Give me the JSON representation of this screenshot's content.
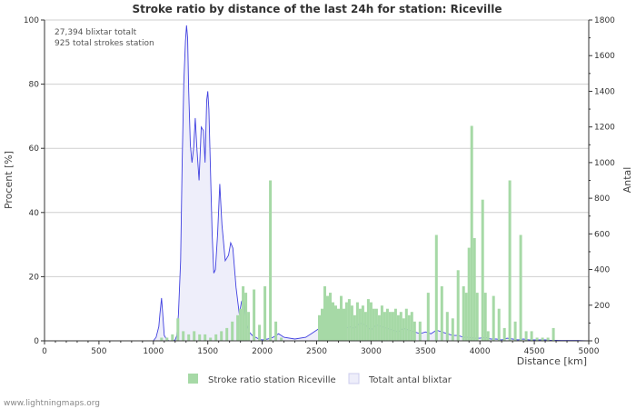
{
  "chart_data": {
    "type": "bar",
    "title": "Stroke ratio by distance of the last 24h for station: Riceville",
    "annotations": [
      "27,394 blixtar totalt",
      "925 total strokes station"
    ],
    "xlabel": "Distance   [km]",
    "ylabel_left": "Procent   [%]",
    "ylabel_right": "Antal",
    "xlim": [
      0,
      5000
    ],
    "ylim_left": [
      0,
      100
    ],
    "ylim_right": [
      0,
      1800
    ],
    "x_ticks": [
      0,
      500,
      1000,
      1500,
      2000,
      2500,
      3000,
      3500,
      4000,
      4500,
      5000
    ],
    "y_left_ticks": [
      0,
      20,
      40,
      60,
      80,
      100
    ],
    "y_right_ticks": [
      0,
      200,
      400,
      600,
      800,
      1000,
      1200,
      1400,
      1600,
      1800
    ],
    "grid": true,
    "legend_position": "bottom",
    "series": [
      {
        "name": "Stroke ratio station Riceville",
        "kind": "bar",
        "axis": "left",
        "color": "#a6d9a6",
        "x": [
          1075,
          1125,
          1175,
          1225,
          1275,
          1325,
          1375,
          1425,
          1475,
          1525,
          1575,
          1625,
          1675,
          1725,
          1775,
          1800,
          1825,
          1850,
          1875,
          1925,
          1975,
          2025,
          2075,
          2125,
          2175,
          2525,
          2550,
          2575,
          2600,
          2625,
          2650,
          2675,
          2700,
          2725,
          2750,
          2775,
          2800,
          2825,
          2850,
          2875,
          2900,
          2925,
          2950,
          2975,
          3000,
          3025,
          3050,
          3075,
          3100,
          3125,
          3150,
          3175,
          3200,
          3225,
          3250,
          3275,
          3300,
          3325,
          3350,
          3375,
          3400,
          3450,
          3525,
          3600,
          3650,
          3700,
          3750,
          3800,
          3850,
          3875,
          3900,
          3925,
          3950,
          3975,
          4025,
          4050,
          4075,
          4125,
          4175,
          4225,
          4275,
          4325,
          4375,
          4425,
          4475,
          4525,
          4575,
          4625,
          4675
        ],
        "values": [
          1,
          1,
          2,
          7,
          3,
          2,
          3,
          2,
          2,
          1,
          2,
          3,
          4,
          6,
          8,
          10,
          17,
          15,
          9,
          16,
          5,
          17,
          50,
          6,
          1,
          8,
          10,
          17,
          14,
          15,
          12,
          11,
          10,
          14,
          10,
          12,
          13,
          11,
          8,
          12,
          10,
          11,
          9,
          13,
          12,
          10,
          10,
          8,
          11,
          9,
          10,
          9,
          9,
          10,
          8,
          9,
          7,
          10,
          8,
          9,
          6,
          6,
          15,
          33,
          17,
          9,
          7,
          22,
          17,
          15,
          29,
          67,
          32,
          15,
          44,
          15,
          3,
          14,
          10,
          4,
          50,
          6,
          33,
          3,
          3,
          1,
          1,
          1,
          4
        ]
      },
      {
        "name": "Totalt antal blixtar",
        "kind": "area",
        "axis": "right",
        "color": "#4040e0",
        "fill": "#eeeefa",
        "x": [
          1000,
          1025,
          1050,
          1060,
          1075,
          1085,
          1100,
          1125,
          1150,
          1175,
          1200,
          1215,
          1230,
          1250,
          1265,
          1280,
          1295,
          1305,
          1315,
          1325,
          1340,
          1355,
          1370,
          1385,
          1400,
          1420,
          1440,
          1460,
          1475,
          1490,
          1500,
          1510,
          1525,
          1540,
          1555,
          1570,
          1590,
          1610,
          1630,
          1660,
          1690,
          1710,
          1730,
          1760,
          1790,
          1810,
          1830,
          1850,
          1880,
          1910,
          1940,
          1970,
          2000,
          2050,
          2100,
          2150,
          2200,
          2300,
          2400,
          2450,
          2500,
          2550,
          2600,
          2650,
          2700,
          2750,
          2800,
          2850,
          2900,
          2950,
          3000,
          3050,
          3100,
          3150,
          3200,
          3250,
          3300,
          3350,
          3400,
          3450,
          3500,
          3550,
          3600,
          3650,
          3700,
          3750,
          3800,
          3850,
          3900,
          3950,
          4000,
          4050,
          4100,
          4150,
          4200,
          4250,
          4300,
          4350,
          4400,
          4450,
          4500,
          4550,
          4600,
          4650,
          4700,
          4750,
          4800,
          4850,
          4900,
          4950,
          5000
        ],
        "values": [
          0,
          20,
          80,
          150,
          240,
          160,
          30,
          5,
          0,
          0,
          5,
          30,
          150,
          450,
          1000,
          1450,
          1680,
          1770,
          1700,
          1400,
          1100,
          1000,
          1080,
          1250,
          1080,
          900,
          1200,
          1180,
          1000,
          1350,
          1400,
          1300,
          950,
          600,
          380,
          400,
          600,
          880,
          650,
          450,
          480,
          550,
          520,
          300,
          150,
          220,
          240,
          100,
          50,
          30,
          20,
          10,
          5,
          10,
          20,
          40,
          20,
          10,
          20,
          40,
          60,
          80,
          70,
          100,
          90,
          60,
          80,
          70,
          100,
          90,
          60,
          90,
          80,
          70,
          60,
          50,
          70,
          60,
          50,
          40,
          50,
          40,
          60,
          50,
          40,
          30,
          30,
          20,
          20,
          15,
          15,
          20,
          10,
          10,
          5,
          15,
          10,
          5,
          10,
          5,
          5,
          5,
          5,
          3,
          3,
          2,
          2,
          2,
          2,
          1,
          0
        ]
      }
    ]
  },
  "footer": {
    "site": "www.lightningmaps.org"
  }
}
